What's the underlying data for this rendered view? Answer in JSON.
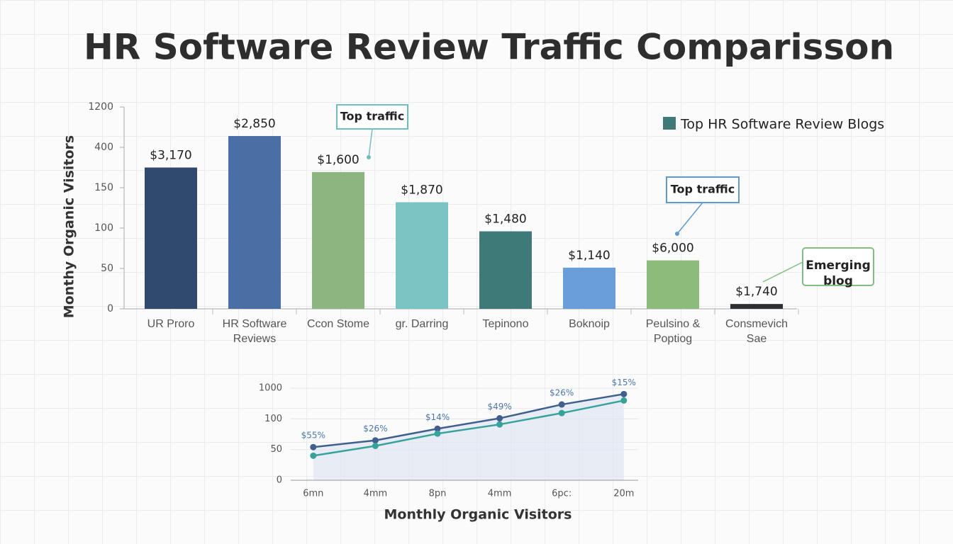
{
  "chart_data": [
    {
      "type": "bar",
      "title": "HR Software Review Traffic Comparisson",
      "y_label": "Monthy Organic Visitors",
      "categories": [
        "UR Proro",
        "HR Software Reviews",
        "Ccon Stome",
        "gr. Darring",
        "Tepinono",
        "Boknoip",
        "Peulsino & Poptiog",
        "Consmevich Sae"
      ],
      "series": [
        {
          "name": "Top HR Software Review Blogs",
          "color": "#3d7a78",
          "values": [
            275,
            624,
            247,
            132,
            96,
            51,
            60,
            6
          ]
        }
      ],
      "colors": [
        "#2f4a6e",
        "#4a6fa5",
        "#8db57f",
        "#7cc4c4",
        "#3d7a78",
        "#6a9edb",
        "#8dbb7c",
        "#2d3033"
      ],
      "bar_texts": [
        "$3,170",
        "$2,850",
        "$1,600",
        "$1,870",
        "$1,480",
        "$1,140",
        "$6,000",
        "$1,740"
      ],
      "annotations": [
        "Top traffic",
        "Top traffic",
        "Emerging blog"
      ],
      "ylim": [
        0,
        1200
      ],
      "yticks": [
        0,
        50,
        100,
        150,
        400,
        1200
      ]
    },
    {
      "type": "line",
      "x_label": "Monthly Organic Visitors",
      "categories": [
        "6mn",
        "4mm",
        "8pn",
        "4mm",
        "6pc:",
        "20m"
      ],
      "series": [
        {
          "color": "#3f5f8f",
          "values": [
            54,
            65,
            84,
            118,
            523,
            829
          ]
        },
        {
          "color": "#36a39a",
          "values": [
            40,
            56,
            76,
            91,
            271,
            640
          ]
        }
      ],
      "point_texts": [
        "$55%",
        "$26%",
        "$14%",
        "$49%",
        "$26%",
        "$15%"
      ],
      "ylim": [
        0,
        1000
      ],
      "yticks": [
        0,
        50,
        100,
        1000
      ]
    }
  ]
}
